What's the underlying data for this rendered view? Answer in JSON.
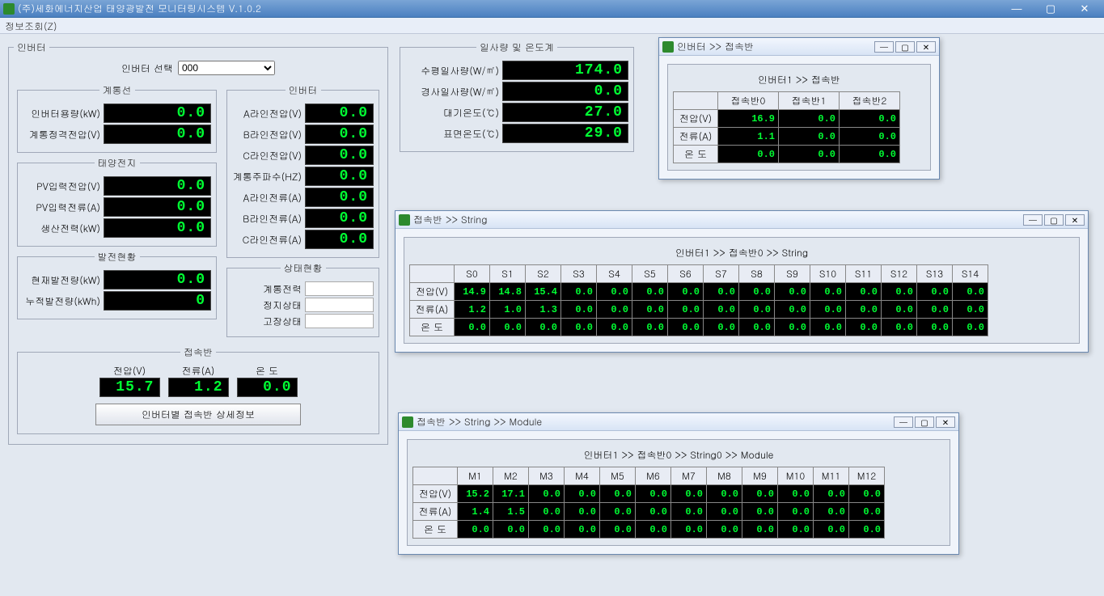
{
  "app": {
    "title": "(주)세화에너지산업 태양광발전 모니터링시스템  V.1.0.2",
    "menu_info": "정보조회(Z)"
  },
  "inverterPanel": {
    "legend": "인버터",
    "selectLabel": "인버터 선택",
    "selectValue": "000",
    "grid": {
      "legend": "계통선",
      "capacityLabel": "인버터용량(kW)",
      "capacityVal": "0.0",
      "ratedVLabel": "계통정격전압(V)",
      "ratedVVal": "0.0"
    },
    "pv": {
      "legend": "태양전지",
      "vinLabel": "PV입력전압(V)",
      "vinVal": "0.0",
      "iinLabel": "PV입력전류(A)",
      "iinVal": "0.0",
      "powLabel": "생산전력(kW)",
      "powVal": "0.0"
    },
    "gen": {
      "legend": "발전현황",
      "nowLabel": "현재발전량(kW)",
      "nowVal": "0.0",
      "accLabel": "누적발전량(kWh)",
      "accVal": "0"
    },
    "inv": {
      "legend": "인버터",
      "aVLabel": "A라인전압(V)",
      "aVVal": "0.0",
      "bVLabel": "B라인전압(V)",
      "bVVal": "0.0",
      "cVLabel": "C라인전압(V)",
      "cVVal": "0.0",
      "freqLabel": "계통주파수(HZ)",
      "freqVal": "0.0",
      "aILabel": "A라인전류(A)",
      "aIVal": "0.0",
      "bILabel": "B라인전류(A)",
      "bIVal": "0.0",
      "cILabel": "C라인전류(A)",
      "cIVal": "0.0"
    },
    "status": {
      "legend": "상태현황",
      "powLabel": "계통전력",
      "stopLabel": "정지상태",
      "faultLabel": "고장상태"
    },
    "junction": {
      "legend": "접속반",
      "vLabel": "전압(V)",
      "vVal": "15.7",
      "iLabel": "전류(A)",
      "iVal": "1.2",
      "tLabel": "온   도",
      "tVal": "0.0",
      "detailBtn": "인버터별 접속반 상세정보"
    }
  },
  "env": {
    "legend": "일사량 및 온도계",
    "hIrrLabel": "수평일사량(W/㎡)",
    "hIrrVal": "174.0",
    "tIrrLabel": "경사일사량(W/㎡)",
    "tIrrVal": "0.0",
    "airTLabel": "대기온도(℃)",
    "airTVal": "27.0",
    "surfTLabel": "표면온도(℃)",
    "surfTVal": "29.0"
  },
  "invJunctionWin": {
    "title": "인버터 >> 접속반",
    "panelTitle": "인버터1 >> 접속반",
    "headers": [
      "접속반0",
      "접속반1",
      "접속반2"
    ],
    "rows": [
      {
        "label": "전압(V)",
        "cells": [
          "16.9",
          "0.0",
          "0.0"
        ]
      },
      {
        "label": "전류(A)",
        "cells": [
          "1.1",
          "0.0",
          "0.0"
        ]
      },
      {
        "label": "온   도",
        "cells": [
          "0.0",
          "0.0",
          "0.0"
        ]
      }
    ]
  },
  "stringWin": {
    "title": "접속반 >> String",
    "panelTitle": "인버터1 >> 접속반0 >> String",
    "headers": [
      "S0",
      "S1",
      "S2",
      "S3",
      "S4",
      "S5",
      "S6",
      "S7",
      "S8",
      "S9",
      "S10",
      "S11",
      "S12",
      "S13",
      "S14"
    ],
    "rows": [
      {
        "label": "전압(V)",
        "cells": [
          "14.9",
          "14.8",
          "15.4",
          "0.0",
          "0.0",
          "0.0",
          "0.0",
          "0.0",
          "0.0",
          "0.0",
          "0.0",
          "0.0",
          "0.0",
          "0.0",
          "0.0"
        ]
      },
      {
        "label": "전류(A)",
        "cells": [
          "1.2",
          "1.0",
          "1.3",
          "0.0",
          "0.0",
          "0.0",
          "0.0",
          "0.0",
          "0.0",
          "0.0",
          "0.0",
          "0.0",
          "0.0",
          "0.0",
          "0.0"
        ]
      },
      {
        "label": "온   도",
        "cells": [
          "0.0",
          "0.0",
          "0.0",
          "0.0",
          "0.0",
          "0.0",
          "0.0",
          "0.0",
          "0.0",
          "0.0",
          "0.0",
          "0.0",
          "0.0",
          "0.0",
          "0.0"
        ]
      }
    ]
  },
  "moduleWin": {
    "title": "접속반 >> String  >> Module",
    "panelTitle": "인버터1 >> 접속반0 >> String0 >> Module",
    "headers": [
      "M1",
      "M2",
      "M3",
      "M4",
      "M5",
      "M6",
      "M7",
      "M8",
      "M9",
      "M10",
      "M11",
      "M12"
    ],
    "rows": [
      {
        "label": "전압(V)",
        "cells": [
          "15.2",
          "17.1",
          "0.0",
          "0.0",
          "0.0",
          "0.0",
          "0.0",
          "0.0",
          "0.0",
          "0.0",
          "0.0",
          "0.0"
        ]
      },
      {
        "label": "전류(A)",
        "cells": [
          "1.4",
          "1.5",
          "0.0",
          "0.0",
          "0.0",
          "0.0",
          "0.0",
          "0.0",
          "0.0",
          "0.0",
          "0.0",
          "0.0"
        ]
      },
      {
        "label": "온   도",
        "cells": [
          "0.0",
          "0.0",
          "0.0",
          "0.0",
          "0.0",
          "0.0",
          "0.0",
          "0.0",
          "0.0",
          "0.0",
          "0.0",
          "0.0"
        ]
      }
    ]
  },
  "colors": {
    "lcdBg": "#000000",
    "lcdFg": "#00ff33"
  }
}
